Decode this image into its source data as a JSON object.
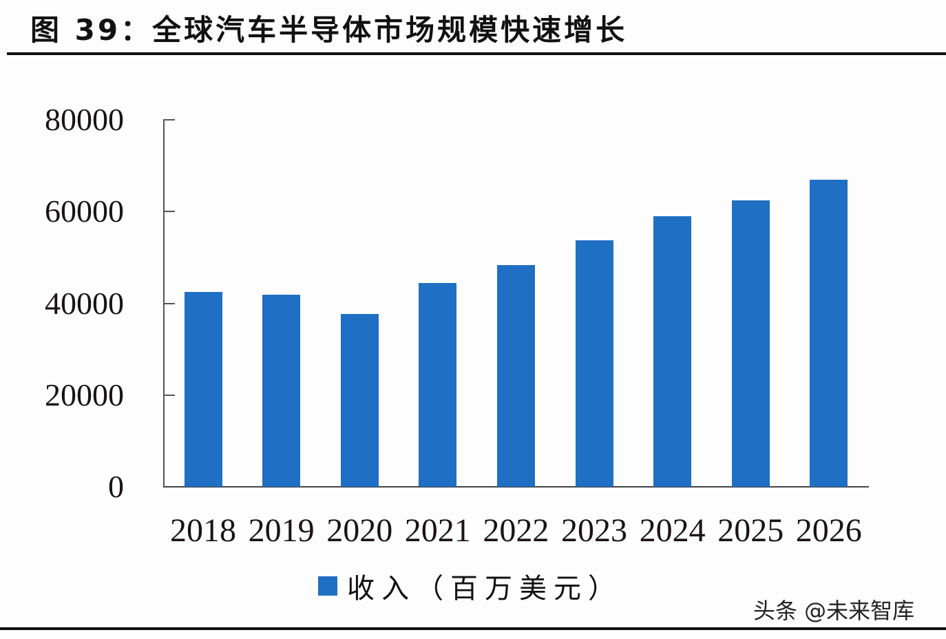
{
  "header": {
    "title": "图 39：全球汽车半导体市场规模快速增长"
  },
  "chart_data": {
    "type": "bar",
    "title": "图 39：全球汽车半导体市场规模快速增长",
    "xlabel": "",
    "ylabel": "",
    "categories": [
      "2018",
      "2019",
      "2020",
      "2021",
      "2022",
      "2023",
      "2024",
      "2025",
      "2026"
    ],
    "series": [
      {
        "name": "收入（百万美元）",
        "color": "#1f6fc4",
        "values": [
          42500,
          41900,
          37700,
          44400,
          48400,
          53800,
          59000,
          62500,
          67000
        ]
      }
    ],
    "ylim": [
      0,
      80000
    ],
    "yticks": [
      "0",
      "20000",
      "40000",
      "60000",
      "80000"
    ],
    "grid": false,
    "legend_position": "bottom"
  },
  "legend": {
    "label": "收入（百万美元）"
  },
  "watermark": "头条 @未来智库"
}
